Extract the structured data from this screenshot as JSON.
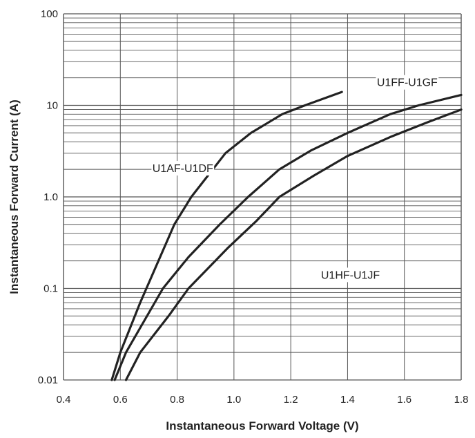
{
  "chart_data": {
    "type": "line",
    "xlabel": "Instantaneous Forward Voltage (V)",
    "ylabel": "Instantaneous Forward Current (A)",
    "xlim": [
      0.4,
      1.8
    ],
    "ylim": [
      0.01,
      100
    ],
    "y_scale": "log",
    "grid": true,
    "x_ticks": [
      "0.4",
      "0.6",
      "0.8",
      "1.0",
      "1.2",
      "1.4",
      "1.6",
      "1.8"
    ],
    "y_ticks": [
      "0.01",
      "0.1",
      "1.0",
      "10",
      "100"
    ],
    "series": [
      {
        "name": "U1AF-U1DF",
        "color": "#222222",
        "points": [
          [
            0.57,
            0.01
          ],
          [
            0.6,
            0.02
          ],
          [
            0.67,
            0.07
          ],
          [
            0.79,
            0.5
          ],
          [
            0.85,
            1.0
          ],
          [
            0.97,
            3.0
          ],
          [
            1.06,
            5.0
          ],
          [
            1.17,
            8.0
          ],
          [
            1.25,
            10.0
          ],
          [
            1.38,
            14.0
          ]
        ]
      },
      {
        "name": "U1FF-U1GF",
        "color": "#222222",
        "points": [
          [
            0.58,
            0.01
          ],
          [
            0.62,
            0.02
          ],
          [
            0.75,
            0.1
          ],
          [
            0.84,
            0.22
          ],
          [
            0.95,
            0.5
          ],
          [
            1.05,
            1.0
          ],
          [
            1.16,
            2.0
          ],
          [
            1.27,
            3.2
          ],
          [
            1.4,
            5.0
          ],
          [
            1.55,
            8.0
          ],
          [
            1.65,
            10.0
          ],
          [
            1.8,
            13.0
          ]
        ]
      },
      {
        "name": "U1HF-U1JF",
        "color": "#222222",
        "points": [
          [
            0.62,
            0.01
          ],
          [
            0.67,
            0.02
          ],
          [
            0.77,
            0.05
          ],
          [
            0.84,
            0.1
          ],
          [
            0.98,
            0.28
          ],
          [
            1.08,
            0.55
          ],
          [
            1.16,
            1.0
          ],
          [
            1.28,
            1.7
          ],
          [
            1.4,
            2.8
          ],
          [
            1.55,
            4.5
          ],
          [
            1.68,
            6.5
          ],
          [
            1.8,
            9.0
          ]
        ]
      }
    ],
    "annotations": [
      {
        "text": "U1AF-U1DF",
        "x": 0.82,
        "y": 1.9
      },
      {
        "text": "U1FF-U1GF",
        "x": 1.61,
        "y": 16.5
      },
      {
        "text": "U1HF-U1JF",
        "x": 1.41,
        "y": 0.13
      }
    ]
  }
}
